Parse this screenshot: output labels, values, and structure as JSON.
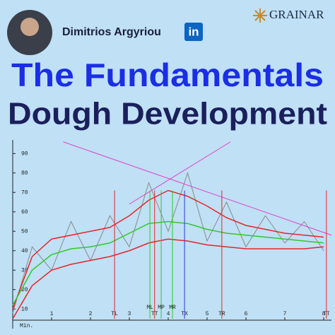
{
  "header": {
    "name": "Dimitrios Argyriou",
    "linkedin": "in",
    "brand": "GRAINAR"
  },
  "title": {
    "line1": "The Fundamentals",
    "line2": "Dough Development"
  },
  "chart_data": {
    "type": "line",
    "x_unit": "Min.",
    "x": [
      0,
      0.5,
      1,
      1.5,
      2,
      2.5,
      3,
      3.5,
      4,
      4.5,
      5,
      5.5,
      6,
      6.5,
      7,
      7.5,
      8
    ],
    "series": [
      {
        "color": "#8a8a8a",
        "values": [
          8,
          42,
          30,
          55,
          35,
          58,
          42,
          75,
          50,
          80,
          45,
          65,
          42,
          58,
          44,
          55,
          40
        ]
      },
      {
        "color": "#e8242a",
        "values": [
          10,
          37,
          46,
          48,
          50,
          52,
          58,
          66,
          71,
          68,
          63,
          57,
          53,
          51,
          49,
          48,
          47
        ]
      },
      {
        "color": "#2fc82f",
        "values": [
          12,
          30,
          38,
          41,
          42,
          44,
          49,
          54,
          55,
          54,
          51,
          49,
          48,
          47,
          46,
          45,
          44
        ]
      },
      {
        "color": "#e8242a",
        "values": [
          5,
          22,
          30,
          33,
          35,
          37,
          40,
          44,
          46,
          45,
          43,
          42,
          41,
          41,
          41,
          41,
          42
        ]
      }
    ],
    "trend_lines": [
      {
        "color": "#e040c8",
        "x": [
          1.3,
          8.2
        ],
        "values": [
          96,
          48
        ]
      },
      {
        "color": "#e040c8",
        "x": [
          3.0,
          5.6
        ],
        "values": [
          64,
          96
        ]
      }
    ],
    "markers": [
      {
        "label": "TL",
        "x": 2.62,
        "color": "#e8242a",
        "row": 2
      },
      {
        "label": "ML",
        "x": 3.53,
        "color": "#2fc82f",
        "row": 1
      },
      {
        "label": "TT",
        "x": 3.65,
        "color": "#e8242a",
        "row": 2
      },
      {
        "label": "MP",
        "x": 3.82,
        "color": "#2fc82f",
        "row": 1
      },
      {
        "label": "MR",
        "x": 4.11,
        "color": "#2fc82f",
        "row": 1
      },
      {
        "label": "TX",
        "x": 4.42,
        "color": "#2a3ad8",
        "row": 2
      },
      {
        "label": "TR",
        "x": 5.38,
        "color": "#e8242a",
        "row": 2
      },
      {
        "label": "TT",
        "x": 8.07,
        "color": "#e8242a",
        "row": 2
      }
    ],
    "xlim": [
      0,
      8.2
    ],
    "ylim": [
      5,
      97
    ],
    "xticks": [
      1,
      2,
      3,
      4,
      5,
      6,
      7,
      8
    ],
    "yticks": [
      10,
      20,
      30,
      40,
      50,
      60,
      70,
      80,
      90
    ],
    "grid": false
  }
}
